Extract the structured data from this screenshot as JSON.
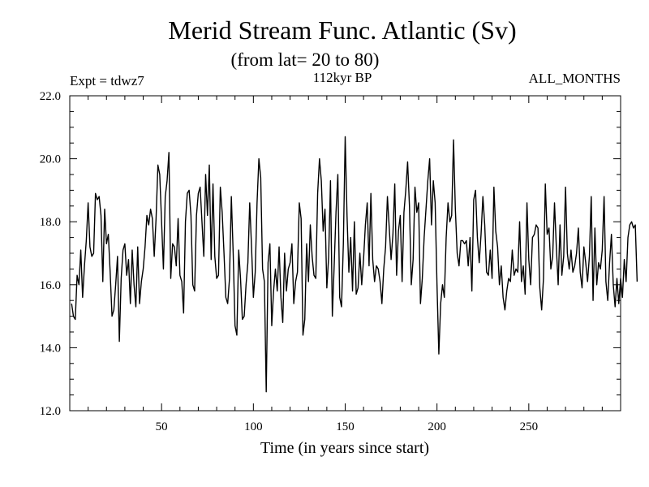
{
  "chart_data": {
    "type": "line",
    "title": "Merid Stream Func. Atlantic (Sv)",
    "subtitle": "(from lat= 20 to 80)",
    "experiment_label": "Expt = tdwz7",
    "period_label": "112kyr BP",
    "months_label": "ALL_MONTHS",
    "xlabel": "Time (in years since start)",
    "ylabel": "",
    "xlim": [
      0,
      300
    ],
    "ylim": [
      12.0,
      22.0
    ],
    "x_ticks": [
      50,
      100,
      150,
      200,
      250
    ],
    "x_tick_labels": [
      "50",
      "100",
      "150",
      "200",
      "250"
    ],
    "y_ticks": [
      12.0,
      14.0,
      16.0,
      18.0,
      20.0,
      22.0
    ],
    "y_tick_labels": [
      "12.0",
      "14.0",
      "16.0",
      "18.0",
      "20.0",
      "22.0"
    ],
    "series": [
      {
        "name": "Merid Stream Func. Atlantic",
        "x_start": 1,
        "x_step": 1,
        "values": [
          15.4,
          15.0,
          14.9,
          16.3,
          16.0,
          17.1,
          15.6,
          16.6,
          17.4,
          18.6,
          17.2,
          16.9,
          17.0,
          18.9,
          18.7,
          18.8,
          18.2,
          16.1,
          18.4,
          17.3,
          17.6,
          16.4,
          15.0,
          15.2,
          16.0,
          16.9,
          14.2,
          16.2,
          17.1,
          17.3,
          16.3,
          16.8,
          15.4,
          17.1,
          16.0,
          15.3,
          17.2,
          15.4,
          16.1,
          16.5,
          17.2,
          18.2,
          17.9,
          18.4,
          18.1,
          16.9,
          18.1,
          19.8,
          19.5,
          18.0,
          16.5,
          18.8,
          19.3,
          20.2,
          16.2,
          17.3,
          17.2,
          16.6,
          18.1,
          16.3,
          16.1,
          15.1,
          18.0,
          18.9,
          19.0,
          18.2,
          16.0,
          15.8,
          18.2,
          18.9,
          19.1,
          18.0,
          16.9,
          19.5,
          18.2,
          19.8,
          16.8,
          19.2,
          16.9,
          16.2,
          16.3,
          19.1,
          18.3,
          17.0,
          15.6,
          15.4,
          16.2,
          18.8,
          17.0,
          14.7,
          14.4,
          17.1,
          16.2,
          14.9,
          15.0,
          16.0,
          16.7,
          18.6,
          17.2,
          15.6,
          16.4,
          18.6,
          20.0,
          19.4,
          16.5,
          16.1,
          12.6,
          16.7,
          17.3,
          14.7,
          15.8,
          16.5,
          15.8,
          17.2,
          15.6,
          14.8,
          17.0,
          15.8,
          16.5,
          16.7,
          17.3,
          15.4,
          16.1,
          16.4,
          18.6,
          18.1,
          14.4,
          14.9,
          17.3,
          16.1,
          17.9,
          16.9,
          16.3,
          16.2,
          18.9,
          20.0,
          19.3,
          17.7,
          18.4,
          15.9,
          16.9,
          19.3,
          15.0,
          16.6,
          18.3,
          19.5,
          15.6,
          15.3,
          17.3,
          20.7,
          18.2,
          16.4,
          17.5,
          15.8,
          18.0,
          15.7,
          15.9,
          17.0,
          16.0,
          16.8,
          17.9,
          18.6,
          16.6,
          18.9,
          16.8,
          16.1,
          16.6,
          16.5,
          16.1,
          15.4,
          16.5,
          17.2,
          18.8,
          17.8,
          16.8,
          17.6,
          19.2,
          16.3,
          17.7,
          18.2,
          16.1,
          18.3,
          19.0,
          19.9,
          18.5,
          16.0,
          16.8,
          19.1,
          18.3,
          18.6,
          15.4,
          16.2,
          17.5,
          18.4,
          19.3,
          20.0,
          17.9,
          19.3,
          18.6,
          16.0,
          13.8,
          15.4,
          16.0,
          15.6,
          17.5,
          18.6,
          18.0,
          18.2,
          20.6,
          18.4,
          17.0,
          16.6,
          17.4,
          17.4,
          17.3,
          17.4,
          16.6,
          17.5,
          15.8,
          18.7,
          19.0,
          17.5,
          16.7,
          17.6,
          18.8,
          17.9,
          16.4,
          16.3,
          17.1,
          16.2,
          19.1,
          17.7,
          17.2,
          16.0,
          16.6,
          15.6,
          15.2,
          15.8,
          16.2,
          16.1,
          17.1,
          16.3,
          16.5,
          16.4,
          18.0,
          16.1,
          16.6,
          15.7,
          18.6,
          16.8,
          16.0,
          17.5,
          17.6,
          17.9,
          17.8,
          15.9,
          15.2,
          16.2,
          19.2,
          17.6,
          17.8,
          16.5,
          16.9,
          18.6,
          17.2,
          16.0,
          17.9,
          16.3,
          16.9,
          19.1,
          17.0,
          16.5,
          17.1,
          16.4,
          16.6,
          17.0,
          17.8,
          16.4,
          15.9,
          17.2,
          16.7,
          16.1,
          16.9,
          18.8,
          15.5,
          17.8,
          16.0,
          16.7,
          16.5,
          17.1,
          18.8,
          16.1,
          15.5,
          16.7,
          17.6,
          16.0,
          15.3,
          16.2,
          15.4,
          16.2,
          15.6,
          16.8,
          16.1,
          17.5,
          17.9,
          18.0,
          17.8,
          17.9,
          16.1
        ]
      }
    ]
  }
}
